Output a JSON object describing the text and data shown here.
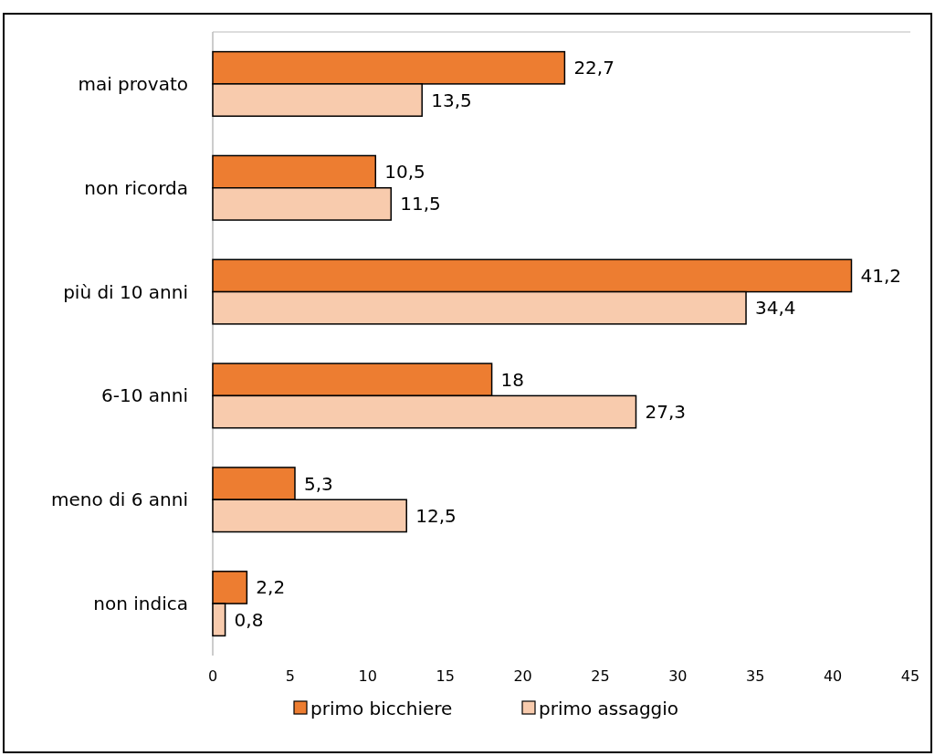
{
  "chart_data": {
    "type": "bar",
    "orientation": "horizontal",
    "categories": [
      "mai provato",
      "non ricorda",
      "più di 10 anni",
      "6-10 anni",
      "meno di 6 anni",
      "non indica"
    ],
    "series": [
      {
        "name": "primo bicchiere",
        "color": "#ed7d31",
        "values": [
          22.7,
          10.5,
          41.2,
          18,
          5.3,
          2.2
        ],
        "value_labels": [
          "22,7",
          "10,5",
          "41,2",
          "18",
          "5,3",
          "2,2"
        ]
      },
      {
        "name": "primo assaggio",
        "color": "#f8cbad",
        "values": [
          13.5,
          11.5,
          34.4,
          27.3,
          12.5,
          0.8
        ],
        "value_labels": [
          "13,5",
          "11,5",
          "34,4",
          "27,3",
          "12,5",
          "0,8"
        ]
      }
    ],
    "xlim": [
      0,
      45
    ],
    "xticks": [
      0,
      5,
      10,
      15,
      20,
      25,
      30,
      35,
      40,
      45
    ],
    "legend": "bottom",
    "grid": false
  }
}
